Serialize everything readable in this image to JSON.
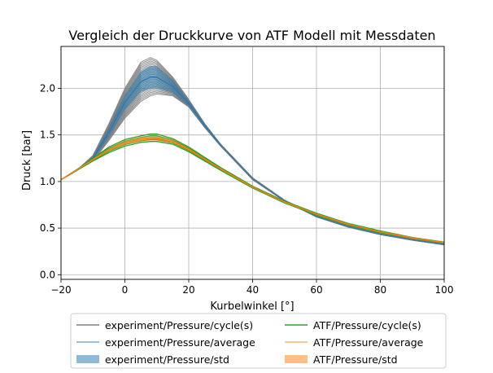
{
  "chart_data": {
    "type": "line",
    "title": "Vergleich der Druckkurve von ATF Modell mit Messdaten",
    "xlabel": "Kurbelwinkel [°]",
    "ylabel": "Druck [bar]",
    "xlim": [
      -20,
      100
    ],
    "ylim": [
      -0.05,
      2.45
    ],
    "xticks": [
      -20,
      0,
      20,
      40,
      60,
      80,
      100
    ],
    "xtick_labels": [
      "−20",
      "0",
      "20",
      "40",
      "60",
      "80",
      "100"
    ],
    "yticks": [
      0.0,
      0.5,
      1.0,
      1.5,
      2.0
    ],
    "ytick_labels": [
      "0.0",
      "0.5",
      "1.0",
      "1.5",
      "2.0"
    ],
    "grid": true,
    "legend_position": "below-plot",
    "legend": [
      {
        "label": "experiment/Pressure/cycle(s)",
        "kind": "line",
        "color": "#808080"
      },
      {
        "label": "ATF/Pressure/cycle(s)",
        "kind": "line",
        "color": "#2ca02c"
      },
      {
        "label": "experiment/Pressure/average",
        "kind": "line",
        "color": "#1f77b4"
      },
      {
        "label": "ATF/Pressure/average",
        "kind": "line",
        "color": "#ff7f0e"
      },
      {
        "label": "experiment/Pressure/std",
        "kind": "band",
        "color": "#1f77b4"
      },
      {
        "label": "ATF/Pressure/std",
        "kind": "band",
        "color": "#ff7f0e"
      }
    ],
    "x": [
      -20,
      -15,
      -10,
      -5,
      0,
      5,
      8,
      10,
      15,
      20,
      25,
      30,
      40,
      50,
      60,
      70,
      80,
      90,
      100
    ],
    "series": [
      {
        "name": "experiment/Pressure/cycle(s)",
        "role": "cycles",
        "color": "#808080",
        "upper": [
          1.02,
          1.12,
          1.28,
          1.62,
          2.0,
          2.28,
          2.33,
          2.3,
          2.12,
          1.88,
          1.62,
          1.4,
          1.04,
          0.8,
          0.63,
          0.52,
          0.44,
          0.38,
          0.33
        ],
        "lower": [
          1.02,
          1.12,
          1.22,
          1.44,
          1.68,
          1.86,
          1.92,
          1.94,
          1.92,
          1.8,
          1.58,
          1.38,
          1.02,
          0.79,
          0.62,
          0.51,
          0.43,
          0.37,
          0.32
        ]
      },
      {
        "name": "experiment/Pressure/average",
        "role": "average",
        "color": "#1f77b4",
        "values": [
          1.02,
          1.12,
          1.25,
          1.53,
          1.85,
          2.07,
          2.12,
          2.12,
          2.02,
          1.84,
          1.6,
          1.39,
          1.03,
          0.795,
          0.625,
          0.515,
          0.435,
          0.375,
          0.325
        ],
        "std": [
          0.0,
          0.0,
          0.02,
          0.05,
          0.08,
          0.11,
          0.12,
          0.12,
          0.07,
          0.03,
          0.02,
          0.01,
          0.0,
          0.0,
          0.0,
          0.0,
          0.0,
          0.0,
          0.0
        ]
      },
      {
        "name": "ATF/Pressure/cycle(s)",
        "role": "cycles",
        "color": "#2ca02c",
        "upper": [
          1.02,
          1.13,
          1.25,
          1.37,
          1.45,
          1.49,
          1.51,
          1.51,
          1.46,
          1.37,
          1.26,
          1.15,
          0.95,
          0.79,
          0.66,
          0.55,
          0.47,
          0.4,
          0.35
        ],
        "lower": [
          1.02,
          1.12,
          1.22,
          1.31,
          1.38,
          1.42,
          1.43,
          1.43,
          1.4,
          1.32,
          1.22,
          1.12,
          0.93,
          0.77,
          0.64,
          0.53,
          0.45,
          0.39,
          0.34
        ]
      },
      {
        "name": "ATF/Pressure/average",
        "role": "average",
        "color": "#ff7f0e",
        "values": [
          1.02,
          1.125,
          1.235,
          1.34,
          1.415,
          1.455,
          1.465,
          1.462,
          1.43,
          1.345,
          1.24,
          1.135,
          0.94,
          0.78,
          0.65,
          0.54,
          0.46,
          0.395,
          0.345
        ],
        "std": [
          0.0,
          0.0,
          0.01,
          0.015,
          0.02,
          0.025,
          0.025,
          0.025,
          0.02,
          0.015,
          0.01,
          0.01,
          0.005,
          0.005,
          0.005,
          0.0,
          0.0,
          0.0,
          0.0
        ]
      }
    ]
  }
}
